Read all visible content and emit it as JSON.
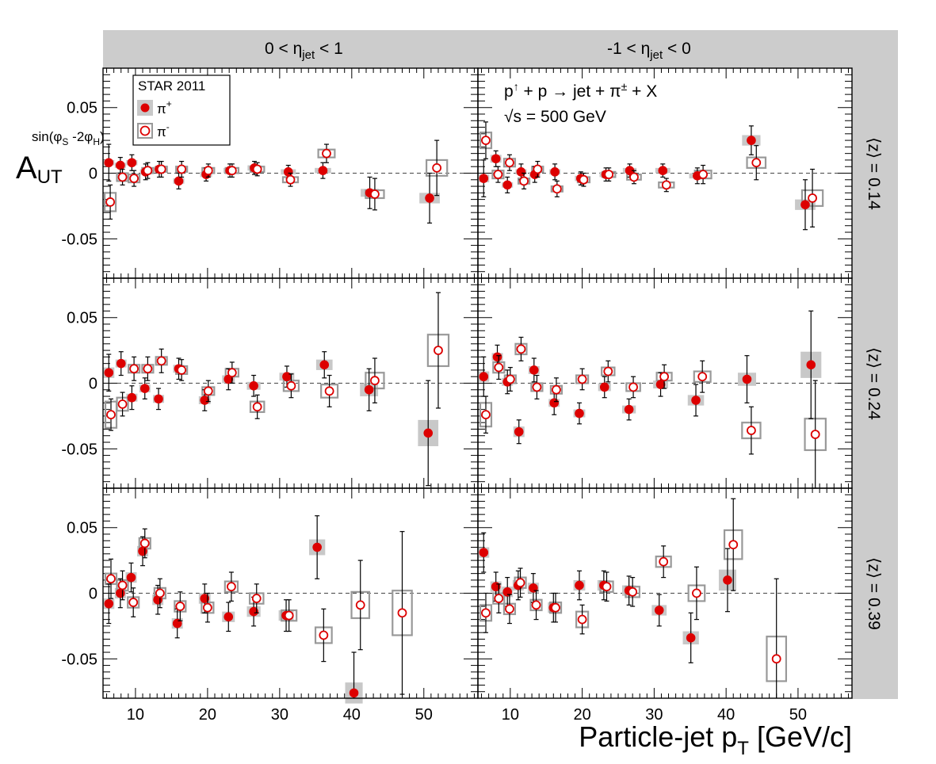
{
  "header": {
    "col_labels": [
      {
        "pre": "0 < η",
        "sub": "jet",
        "post": " < 1"
      },
      {
        "pre": "-1 < η",
        "sub": "jet",
        "post": " < 0"
      }
    ],
    "row_labels": [
      "⟨z⟩ = 0.14",
      "⟨z⟩ = 0.24",
      "⟨z⟩ = 0.39"
    ]
  },
  "legend": {
    "title": "STAR 2011",
    "entries": [
      {
        "label": "π",
        "sup": "+",
        "style": "filled"
      },
      {
        "label": "π",
        "sup": "-",
        "style": "open"
      }
    ]
  },
  "annotation": {
    "process": {
      "p1": "p",
      "arrow": "↑",
      "rest": " + p → jet + π",
      "sup": "±",
      "tail": " + X"
    },
    "energy": "√s = 500 GeV"
  },
  "axes": {
    "ylabel": {
      "main": "A",
      "sub": "UT",
      "sup": "sin(φ",
      "sup_sub1": "S",
      "sup_mid": " -2φ",
      "sup_sub2": "H",
      "sup_end": ")"
    },
    "xlabel": {
      "main": "Particle-jet p",
      "sub": "T",
      "post": " [GeV/c]"
    },
    "yticks": [
      "0.05",
      "0",
      "-0.05"
    ],
    "xticks": [
      "10",
      "20",
      "30",
      "40",
      "50"
    ]
  },
  "colors": {
    "pi_plus": "#dd0000",
    "pi_minus": "#dd0000",
    "sys_plus": "#c8c8c8",
    "sys_minus": "#999999",
    "header_bg": "#cccccc"
  },
  "chart_data": {
    "type": "scatter",
    "xlim": [
      5.5,
      57.5
    ],
    "ylim": [
      -0.08,
      0.08
    ],
    "xlabel": "Particle-jet pT [GeV/c]",
    "ylabel": "A_UT^sin(φS-2φH)",
    "panels": [
      {
        "row": 0,
        "col": 0,
        "eta": "0 < η_jet < 1",
        "z": "0.14",
        "pi_plus": [
          [
            6.3,
            0.008,
            0.014,
            0.002
          ],
          [
            7.9,
            0.006,
            0.006,
            0.002
          ],
          [
            9.5,
            0.008,
            0.006,
            0.002
          ],
          [
            11.4,
            0.001,
            0.006,
            0.002
          ],
          [
            13.3,
            0.003,
            0.006,
            0.002
          ],
          [
            16.0,
            -0.006,
            0.006,
            0.002
          ],
          [
            19.8,
            -0.001,
            0.005,
            0.002
          ],
          [
            23.1,
            0.002,
            0.005,
            0.002
          ],
          [
            26.5,
            0.004,
            0.005,
            0.002
          ],
          [
            31.2,
            0.001,
            0.005,
            0.002
          ],
          [
            36.0,
            0.002,
            0.006,
            0.002
          ],
          [
            42.5,
            -0.015,
            0.012,
            0.003
          ],
          [
            50.8,
            -0.019,
            0.019,
            0.004
          ]
        ],
        "pi_minus": [
          [
            6.5,
            -0.022,
            0.013,
            0.007
          ],
          [
            8.2,
            -0.003,
            0.006,
            0.003
          ],
          [
            9.8,
            -0.004,
            0.006,
            0.003
          ],
          [
            11.7,
            0.002,
            0.006,
            0.002
          ],
          [
            13.6,
            0.003,
            0.006,
            0.002
          ],
          [
            16.4,
            0.003,
            0.006,
            0.002
          ],
          [
            20.1,
            0.002,
            0.005,
            0.002
          ],
          [
            23.4,
            0.002,
            0.005,
            0.002
          ],
          [
            26.9,
            0.003,
            0.005,
            0.002
          ],
          [
            31.5,
            -0.005,
            0.005,
            0.002
          ],
          [
            36.5,
            0.015,
            0.007,
            0.003
          ],
          [
            43.2,
            -0.016,
            0.012,
            0.003
          ],
          [
            51.8,
            0.004,
            0.021,
            0.006
          ]
        ]
      },
      {
        "row": 0,
        "col": 1,
        "eta": "-1 < η_jet < 0",
        "z": "0.14",
        "pi_plus": [
          [
            6.3,
            -0.004,
            0.014,
            0.003
          ],
          [
            8.0,
            0.011,
            0.006,
            0.003
          ],
          [
            9.6,
            -0.009,
            0.006,
            0.002
          ],
          [
            11.5,
            0.001,
            0.006,
            0.002
          ],
          [
            13.4,
            -0.001,
            0.006,
            0.002
          ],
          [
            16.2,
            0.001,
            0.006,
            0.002
          ],
          [
            19.8,
            -0.004,
            0.005,
            0.002
          ],
          [
            23.3,
            -0.001,
            0.005,
            0.002
          ],
          [
            26.6,
            0.002,
            0.005,
            0.002
          ],
          [
            31.2,
            0.002,
            0.005,
            0.002
          ],
          [
            36.0,
            -0.002,
            0.006,
            0.002
          ],
          [
            43.5,
            0.025,
            0.011,
            0.004
          ],
          [
            51.0,
            -0.024,
            0.019,
            0.004
          ]
        ],
        "pi_minus": [
          [
            6.6,
            0.025,
            0.014,
            0.006
          ],
          [
            8.3,
            -0.001,
            0.006,
            0.003
          ],
          [
            9.9,
            0.008,
            0.006,
            0.003
          ],
          [
            11.9,
            -0.006,
            0.006,
            0.002
          ],
          [
            13.8,
            0.003,
            0.006,
            0.002
          ],
          [
            16.5,
            -0.012,
            0.006,
            0.002
          ],
          [
            20.2,
            -0.005,
            0.005,
            0.002
          ],
          [
            23.7,
            -0.001,
            0.005,
            0.002
          ],
          [
            27.2,
            -0.003,
            0.005,
            0.002
          ],
          [
            31.7,
            -0.009,
            0.005,
            0.002
          ],
          [
            36.8,
            -0.001,
            0.007,
            0.003
          ],
          [
            44.2,
            0.008,
            0.013,
            0.004
          ],
          [
            52.0,
            -0.019,
            0.022,
            0.006
          ]
        ]
      },
      {
        "row": 1,
        "col": 0,
        "eta": "0 < η_jet < 1",
        "z": "0.24",
        "pi_plus": [
          [
            6.3,
            0.008,
            0.014,
            0.004
          ],
          [
            8.0,
            0.015,
            0.009,
            0.003
          ],
          [
            9.5,
            -0.011,
            0.009,
            0.003
          ],
          [
            11.3,
            -0.004,
            0.008,
            0.003
          ],
          [
            13.2,
            -0.012,
            0.008,
            0.003
          ],
          [
            16.0,
            0.011,
            0.008,
            0.003
          ],
          [
            19.6,
            -0.013,
            0.008,
            0.003
          ],
          [
            22.9,
            0.003,
            0.008,
            0.003
          ],
          [
            26.4,
            -0.002,
            0.008,
            0.003
          ],
          [
            31.0,
            0.005,
            0.008,
            0.003
          ],
          [
            36.2,
            0.014,
            0.01,
            0.004
          ],
          [
            42.4,
            -0.005,
            0.016,
            0.005
          ],
          [
            50.6,
            -0.038,
            0.04,
            0.01
          ]
        ],
        "pi_minus": [
          [
            6.6,
            -0.024,
            0.012,
            0.01
          ],
          [
            8.2,
            -0.016,
            0.009,
            0.005
          ],
          [
            9.8,
            0.011,
            0.009,
            0.003
          ],
          [
            11.7,
            0.011,
            0.009,
            0.003
          ],
          [
            13.6,
            0.017,
            0.009,
            0.003
          ],
          [
            16.4,
            0.01,
            0.008,
            0.003
          ],
          [
            20.1,
            -0.006,
            0.008,
            0.003
          ],
          [
            23.4,
            0.008,
            0.008,
            0.003
          ],
          [
            26.9,
            -0.018,
            0.009,
            0.004
          ],
          [
            31.6,
            -0.002,
            0.009,
            0.004
          ],
          [
            36.9,
            -0.006,
            0.012,
            0.005
          ],
          [
            43.2,
            0.002,
            0.017,
            0.006
          ],
          [
            52.0,
            0.025,
            0.044,
            0.012
          ]
        ]
      },
      {
        "row": 1,
        "col": 1,
        "eta": "-1 < η_jet < 0",
        "z": "0.24",
        "pi_plus": [
          [
            6.3,
            0.005,
            0.015,
            0.004
          ],
          [
            8.2,
            0.02,
            0.009,
            0.003
          ],
          [
            9.6,
            0.001,
            0.009,
            0.003
          ],
          [
            11.2,
            -0.037,
            0.009,
            0.004
          ],
          [
            13.3,
            0.01,
            0.009,
            0.003
          ],
          [
            16.1,
            -0.015,
            0.009,
            0.003
          ],
          [
            19.6,
            -0.023,
            0.008,
            0.003
          ],
          [
            23.1,
            -0.003,
            0.008,
            0.003
          ],
          [
            26.5,
            -0.02,
            0.008,
            0.003
          ],
          [
            30.9,
            -0.001,
            0.009,
            0.003
          ],
          [
            35.8,
            -0.013,
            0.012,
            0.004
          ],
          [
            42.9,
            0.003,
            0.018,
            0.005
          ],
          [
            51.8,
            0.014,
            0.041,
            0.01
          ]
        ],
        "pi_minus": [
          [
            6.6,
            -0.024,
            0.014,
            0.009
          ],
          [
            8.4,
            0.012,
            0.009,
            0.004
          ],
          [
            10.0,
            0.003,
            0.009,
            0.003
          ],
          [
            11.5,
            0.026,
            0.009,
            0.004
          ],
          [
            13.7,
            -0.003,
            0.009,
            0.003
          ],
          [
            16.4,
            -0.005,
            0.009,
            0.003
          ],
          [
            20.0,
            0.003,
            0.008,
            0.003
          ],
          [
            23.6,
            0.009,
            0.008,
            0.003
          ],
          [
            27.1,
            -0.003,
            0.008,
            0.003
          ],
          [
            31.4,
            0.005,
            0.009,
            0.003
          ],
          [
            36.7,
            0.005,
            0.012,
            0.004
          ],
          [
            43.5,
            -0.036,
            0.018,
            0.006
          ],
          [
            52.4,
            -0.039,
            0.041,
            0.012
          ]
        ]
      },
      {
        "row": 2,
        "col": 0,
        "eta": "0 < η_jet < 1",
        "z": "0.39",
        "pi_plus": [
          [
            6.3,
            -0.008,
            0.015,
            0.004
          ],
          [
            7.9,
            0.0,
            0.011,
            0.004
          ],
          [
            9.4,
            0.012,
            0.011,
            0.004
          ],
          [
            11.0,
            0.032,
            0.011,
            0.004
          ],
          [
            13.1,
            -0.005,
            0.011,
            0.004
          ],
          [
            15.8,
            -0.023,
            0.011,
            0.004
          ],
          [
            19.6,
            -0.004,
            0.011,
            0.004
          ],
          [
            22.9,
            -0.018,
            0.011,
            0.004
          ],
          [
            26.4,
            -0.014,
            0.011,
            0.004
          ],
          [
            30.9,
            -0.017,
            0.012,
            0.004
          ],
          [
            35.2,
            0.035,
            0.024,
            0.006
          ],
          [
            40.3,
            -0.076,
            0.031,
            0.008
          ]
        ],
        "pi_minus": [
          [
            6.6,
            0.011,
            0.015,
            0.004
          ],
          [
            8.2,
            0.006,
            0.011,
            0.004
          ],
          [
            9.7,
            -0.007,
            0.011,
            0.004
          ],
          [
            11.3,
            0.038,
            0.011,
            0.004
          ],
          [
            13.4,
            0.0,
            0.011,
            0.004
          ],
          [
            16.2,
            -0.01,
            0.011,
            0.004
          ],
          [
            20.0,
            -0.011,
            0.011,
            0.004
          ],
          [
            23.3,
            0.005,
            0.011,
            0.004
          ],
          [
            26.8,
            -0.004,
            0.011,
            0.004
          ],
          [
            31.3,
            -0.017,
            0.012,
            0.004
          ],
          [
            36.1,
            -0.032,
            0.02,
            0.006
          ],
          [
            41.2,
            -0.009,
            0.034,
            0.01
          ],
          [
            47.0,
            -0.015,
            0.062,
            0.017
          ]
        ]
      },
      {
        "row": 2,
        "col": 1,
        "eta": "-1 < η_jet < 0",
        "z": "0.39",
        "pi_plus": [
          [
            6.3,
            0.031,
            0.015,
            0.004
          ],
          [
            8.0,
            0.005,
            0.011,
            0.004
          ],
          [
            9.6,
            0.001,
            0.011,
            0.004
          ],
          [
            11.1,
            0.006,
            0.011,
            0.004
          ],
          [
            13.2,
            0.004,
            0.011,
            0.004
          ],
          [
            16.0,
            -0.011,
            0.011,
            0.004
          ],
          [
            19.6,
            0.006,
            0.011,
            0.004
          ],
          [
            23.0,
            0.006,
            0.011,
            0.004
          ],
          [
            26.5,
            0.002,
            0.011,
            0.004
          ],
          [
            30.7,
            -0.013,
            0.012,
            0.004
          ],
          [
            35.1,
            -0.034,
            0.019,
            0.005
          ],
          [
            40.2,
            0.01,
            0.024,
            0.008
          ]
        ],
        "pi_minus": [
          [
            6.6,
            -0.015,
            0.015,
            0.006
          ],
          [
            8.4,
            -0.004,
            0.011,
            0.004
          ],
          [
            9.9,
            -0.012,
            0.011,
            0.004
          ],
          [
            11.4,
            0.008,
            0.011,
            0.004
          ],
          [
            13.6,
            -0.009,
            0.011,
            0.004
          ],
          [
            16.3,
            -0.011,
            0.011,
            0.004
          ],
          [
            20.0,
            -0.02,
            0.011,
            0.006
          ],
          [
            23.4,
            0.005,
            0.011,
            0.004
          ],
          [
            27.0,
            0.001,
            0.011,
            0.004
          ],
          [
            31.3,
            0.024,
            0.012,
            0.004
          ],
          [
            35.9,
            0.0,
            0.02,
            0.006
          ],
          [
            41.0,
            0.037,
            0.035,
            0.011
          ],
          [
            47.0,
            -0.05,
            0.061,
            0.017
          ]
        ]
      }
    ]
  }
}
